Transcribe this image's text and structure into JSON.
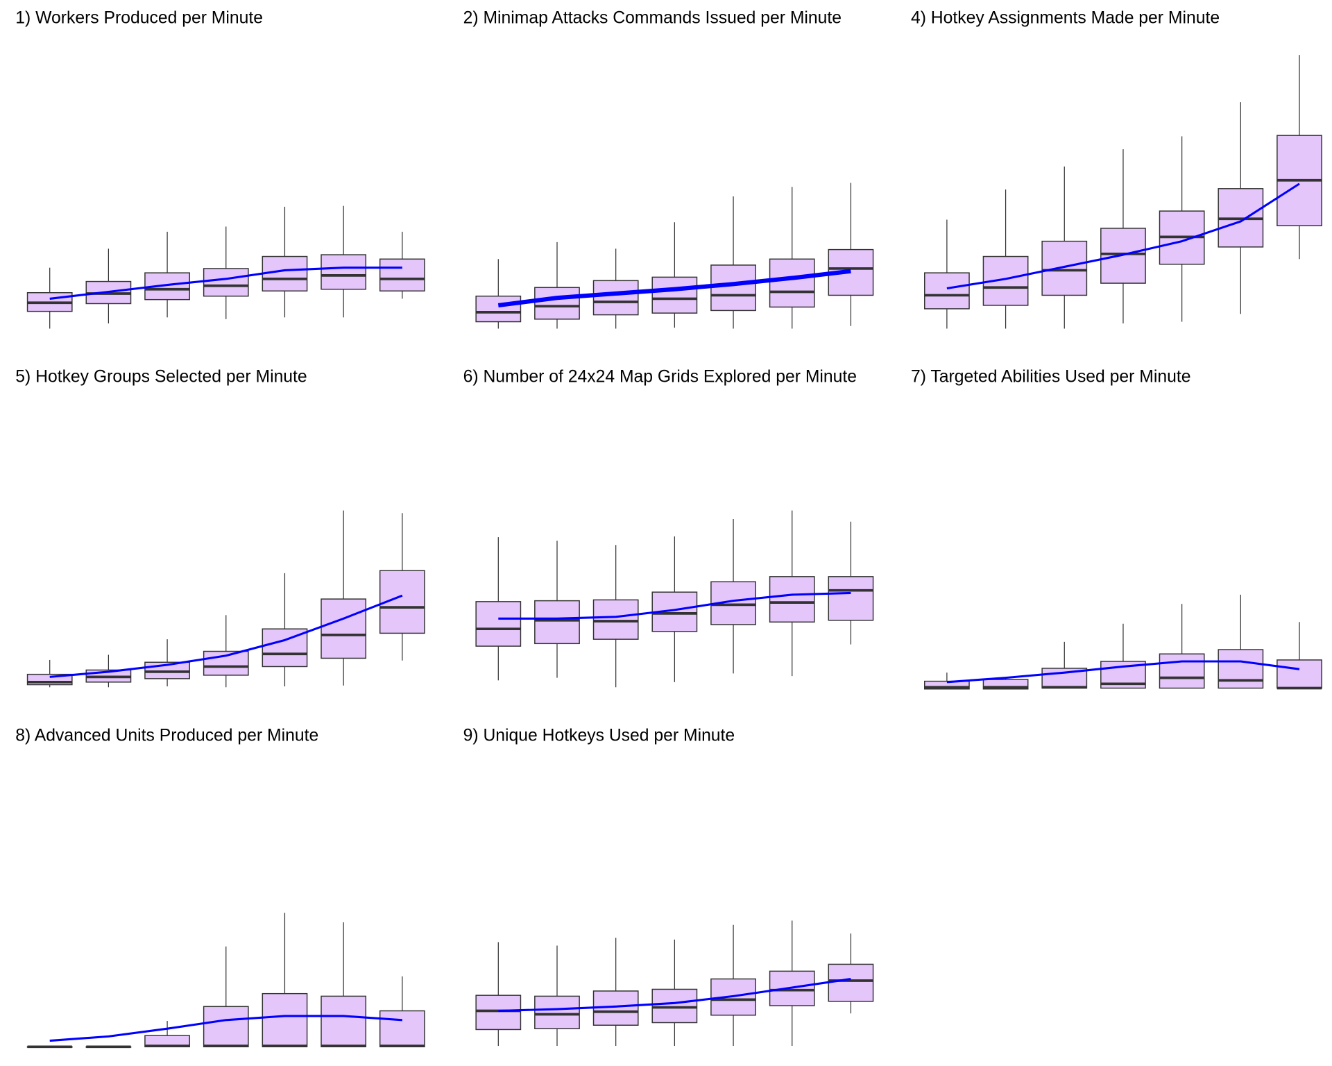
{
  "chart_data": [
    {
      "type": "box",
      "title": "1) Workers Produced per Minute",
      "categories": [
        null,
        null,
        null,
        null,
        null,
        null,
        null
      ],
      "ylim": [
        0,
        100
      ],
      "box_color": "#e5c6fa",
      "trend_color": "#0000ff",
      "trend_width": 2.5,
      "boxes": [
        {
          "min": 0.6,
          "q1": 6.6,
          "median": 9.6,
          "q3": 13.1,
          "max": 21.8
        },
        {
          "min": 2.4,
          "q1": 9.3,
          "median": 12.8,
          "q3": 17.0,
          "max": 28.4
        },
        {
          "min": 4.5,
          "q1": 10.7,
          "median": 14.3,
          "q3": 20.0,
          "max": 34.3
        },
        {
          "min": 3.9,
          "q1": 11.9,
          "median": 15.5,
          "q3": 21.5,
          "max": 36.1
        },
        {
          "min": 4.5,
          "q1": 13.7,
          "median": 17.9,
          "q3": 25.7,
          "max": 43.0
        },
        {
          "min": 4.5,
          "q1": 14.3,
          "median": 19.1,
          "q3": 26.3,
          "max": 43.3
        },
        {
          "min": 11.0,
          "q1": 13.7,
          "median": 17.9,
          "q3": 24.8,
          "max": 34.3
        }
      ],
      "trend": [
        11.0,
        13.4,
        15.8,
        17.9,
        20.9,
        21.8,
        21.8
      ]
    },
    {
      "type": "box",
      "title": "2) Minimap Attacks Commands Issued per Minute",
      "categories": [
        null,
        null,
        null,
        null,
        null,
        null,
        null
      ],
      "ylim": [
        0,
        100
      ],
      "box_color": "#e5c6fa",
      "trend_color": "#0000ff",
      "trend_width": 5,
      "boxes": [
        {
          "min": 0.6,
          "q1": 3.0,
          "median": 6.3,
          "q3": 11.9,
          "max": 24.8
        },
        {
          "min": 0.6,
          "q1": 3.9,
          "median": 8.4,
          "q3": 14.9,
          "max": 30.7
        },
        {
          "min": 0.6,
          "q1": 5.4,
          "median": 9.9,
          "q3": 17.3,
          "max": 28.4
        },
        {
          "min": 0.9,
          "q1": 6.0,
          "median": 11.0,
          "q3": 18.5,
          "max": 37.6
        },
        {
          "min": 0.6,
          "q1": 6.9,
          "median": 12.2,
          "q3": 22.7,
          "max": 46.6
        },
        {
          "min": 0.6,
          "q1": 8.1,
          "median": 13.4,
          "q3": 24.8,
          "max": 49.9
        },
        {
          "min": 1.5,
          "q1": 12.2,
          "median": 21.5,
          "q3": 28.1,
          "max": 51.3
        }
      ],
      "trend": [
        8.7,
        11.3,
        12.8,
        14.3,
        16.1,
        18.2,
        20.6
      ]
    },
    {
      "type": "box",
      "title": "4) Hotkey Assignments Made per Minute",
      "categories": [
        null,
        null,
        null,
        null,
        null,
        null,
        null
      ],
      "ylim": [
        0,
        100
      ],
      "box_color": "#e5c6fa",
      "trend_color": "#0000ff",
      "trend_width": 2.5,
      "boxes": [
        {
          "min": 0.6,
          "q1": 7.5,
          "median": 12.2,
          "q3": 20.0,
          "max": 38.5
        },
        {
          "min": 0.6,
          "q1": 8.7,
          "median": 14.9,
          "q3": 25.7,
          "max": 49.0
        },
        {
          "min": 0.6,
          "q1": 12.2,
          "median": 20.9,
          "q3": 31.0,
          "max": 57.0
        },
        {
          "min": 2.4,
          "q1": 16.4,
          "median": 26.6,
          "q3": 35.5,
          "max": 63.0
        },
        {
          "min": 3.0,
          "q1": 23.0,
          "median": 32.5,
          "q3": 41.5,
          "max": 67.5
        },
        {
          "min": 5.7,
          "q1": 29.0,
          "median": 38.8,
          "q3": 49.3,
          "max": 79.4
        },
        {
          "min": 24.8,
          "q1": 36.4,
          "median": 52.2,
          "q3": 67.8,
          "max": 95.8
        }
      ],
      "trend": [
        14.6,
        17.9,
        22.1,
        26.3,
        31.0,
        37.9,
        51.0
      ]
    },
    {
      "type": "box",
      "title": "5) Hotkey Groups Selected per Minute",
      "categories": [
        null,
        null,
        null,
        null,
        null,
        null,
        null
      ],
      "ylim": [
        0,
        100
      ],
      "box_color": "#e5c6fa",
      "trend_color": "#0000ff",
      "trend_width": 2.5,
      "boxes": [
        {
          "min": 0.6,
          "q1": 1.5,
          "median": 2.4,
          "q3": 5.1,
          "max": 10.1
        },
        {
          "min": 0.6,
          "q1": 2.4,
          "median": 4.2,
          "q3": 6.6,
          "max": 11.9
        },
        {
          "min": 0.9,
          "q1": 3.6,
          "median": 6.0,
          "q3": 9.3,
          "max": 17.3
        },
        {
          "min": 0.6,
          "q1": 4.8,
          "median": 7.8,
          "q3": 13.1,
          "max": 25.7
        },
        {
          "min": 0.9,
          "q1": 7.8,
          "median": 12.2,
          "q3": 20.9,
          "max": 40.3
        },
        {
          "min": 1.2,
          "q1": 10.7,
          "median": 18.8,
          "q3": 31.3,
          "max": 62.1
        },
        {
          "min": 9.9,
          "q1": 19.4,
          "median": 28.4,
          "q3": 41.2,
          "max": 61.2
        }
      ],
      "trend": [
        4.2,
        6.0,
        8.4,
        11.6,
        17.0,
        24.5,
        32.5
      ]
    },
    {
      "type": "box",
      "title": "6) Number of 24x24 Map Grids Explored per Minute",
      "categories": [
        null,
        null,
        null,
        null,
        null,
        null,
        null
      ],
      "ylim": [
        0,
        100
      ],
      "box_color": "#e5c6fa",
      "trend_color": "#0000ff",
      "trend_width": 2.5,
      "boxes": [
        {
          "min": 3.0,
          "q1": 14.9,
          "median": 20.9,
          "q3": 30.4,
          "max": 52.8
        },
        {
          "min": 3.9,
          "q1": 15.8,
          "median": 23.9,
          "q3": 30.7,
          "max": 51.6
        },
        {
          "min": 0.6,
          "q1": 17.3,
          "median": 23.6,
          "q3": 31.0,
          "max": 50.1
        },
        {
          "min": 2.4,
          "q1": 20.0,
          "median": 26.3,
          "q3": 33.7,
          "max": 53.1
        },
        {
          "min": 5.4,
          "q1": 22.4,
          "median": 29.3,
          "q3": 37.3,
          "max": 59.1
        },
        {
          "min": 4.5,
          "q1": 23.3,
          "median": 30.1,
          "q3": 39.1,
          "max": 62.1
        },
        {
          "min": 15.5,
          "q1": 23.9,
          "median": 34.3,
          "q3": 39.1,
          "max": 58.2
        }
      ],
      "trend": [
        24.5,
        24.5,
        25.1,
        27.5,
        30.7,
        32.8,
        33.4
      ]
    },
    {
      "type": "box",
      "title": "7) Targeted Abilities Used per Minute",
      "categories": [
        null,
        null,
        null,
        null,
        null,
        null,
        null
      ],
      "ylim": [
        0,
        100
      ],
      "box_color": "#e5c6fa",
      "trend_color": "#0000ff",
      "trend_width": 2.5,
      "boxes": [
        {
          "min": 0,
          "q1": 0,
          "median": 0.6,
          "q3": 2.7,
          "max": 5.7
        },
        {
          "min": 0,
          "q1": 0,
          "median": 0.6,
          "q3": 3.3,
          "max": 4.2
        },
        {
          "min": 0.3,
          "q1": 0.3,
          "median": 0.6,
          "q3": 7.2,
          "max": 16.4
        },
        {
          "min": 0.3,
          "q1": 0.3,
          "median": 1.8,
          "q3": 9.6,
          "max": 22.7
        },
        {
          "min": 0.3,
          "q1": 0.3,
          "median": 3.9,
          "q3": 12.2,
          "max": 29.6
        },
        {
          "min": 0.3,
          "q1": 0.3,
          "median": 3.0,
          "q3": 13.7,
          "max": 32.8
        },
        {
          "min": 0.3,
          "q1": 0.3,
          "median": 0.3,
          "q3": 10.1,
          "max": 23.3
        }
      ],
      "trend": [
        2.4,
        3.9,
        5.7,
        7.8,
        9.6,
        9.6,
        6.9
      ]
    },
    {
      "type": "box",
      "title": "8) Advanced Units Produced per Minute",
      "categories": [
        null,
        null,
        null,
        null,
        null,
        null,
        null
      ],
      "ylim": [
        0,
        100
      ],
      "box_color": "#e5c6fa",
      "trend_color": "#0000ff",
      "trend_width": 2.5,
      "boxes": [
        {
          "min": 0.6,
          "q1": 0.6,
          "median": 0.6,
          "q3": 0.6,
          "max": 0.6
        },
        {
          "min": 0.6,
          "q1": 0.6,
          "median": 0.6,
          "q3": 0.6,
          "max": 0.6
        },
        {
          "min": 0.6,
          "q1": 0.6,
          "median": 0.9,
          "q3": 4.5,
          "max": 9.6
        },
        {
          "min": 0.6,
          "q1": 0.6,
          "median": 0.9,
          "q3": 14.6,
          "max": 35.5
        },
        {
          "min": 0.6,
          "q1": 0.6,
          "median": 0.9,
          "q3": 19.1,
          "max": 47.2
        },
        {
          "min": 0.6,
          "q1": 0.6,
          "median": 0.9,
          "q3": 18.2,
          "max": 43.9
        },
        {
          "min": 0.6,
          "q1": 0.6,
          "median": 0.9,
          "q3": 13.1,
          "max": 25.1
        }
      ],
      "trend": [
        2.7,
        4.2,
        6.9,
        9.9,
        11.3,
        11.3,
        9.9
      ]
    },
    {
      "type": "box",
      "title": "9) Unique Hotkeys Used per Minute",
      "categories": [
        null,
        null,
        null,
        null,
        null,
        null,
        null
      ],
      "ylim": [
        0,
        100
      ],
      "box_color": "#e5c6fa",
      "trend_color": "#0000ff",
      "trend_width": 2.5,
      "boxes": [
        {
          "min": 0.9,
          "q1": 6.6,
          "median": 13.1,
          "q3": 18.5,
          "max": 37.0
        },
        {
          "min": 0.9,
          "q1": 6.9,
          "median": 11.9,
          "q3": 18.2,
          "max": 35.8
        },
        {
          "min": 0.9,
          "q1": 8.1,
          "median": 12.8,
          "q3": 20.0,
          "max": 38.5
        },
        {
          "min": 0.9,
          "q1": 9.0,
          "median": 14.3,
          "q3": 20.6,
          "max": 37.9
        },
        {
          "min": 0.9,
          "q1": 11.6,
          "median": 17.0,
          "q3": 24.2,
          "max": 43.0
        },
        {
          "min": 0.9,
          "q1": 14.9,
          "median": 20.3,
          "q3": 26.9,
          "max": 44.5
        },
        {
          "min": 12.2,
          "q1": 16.4,
          "median": 23.6,
          "q3": 29.3,
          "max": 40.0
        }
      ],
      "trend": [
        13.1,
        13.7,
        14.6,
        15.8,
        18.2,
        21.2,
        24.2
      ]
    }
  ]
}
